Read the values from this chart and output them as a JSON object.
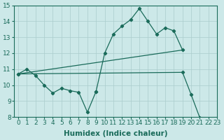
{
  "xlabel": "Humidex (Indice chaleur)",
  "color": "#1a6b5a",
  "bg_color": "#cce8e8",
  "grid_color": "#aacccc",
  "ylim": [
    8,
    15
  ],
  "xlim": [
    -0.5,
    23
  ],
  "yticks": [
    8,
    9,
    10,
    11,
    12,
    13,
    14,
    15
  ],
  "xticks": [
    0,
    1,
    2,
    3,
    4,
    5,
    6,
    7,
    8,
    9,
    10,
    11,
    12,
    13,
    14,
    15,
    16,
    17,
    18,
    19,
    20,
    21,
    22,
    23
  ],
  "tick_fontsize": 6.5,
  "xlabel_fontsize": 7.5,
  "series": {
    "zigzag": {
      "x": [
        0,
        1,
        2,
        3,
        4,
        5,
        6,
        7,
        8,
        9
      ],
      "y": [
        10.7,
        11.0,
        10.6,
        10.0,
        9.5,
        9.8,
        9.65,
        9.55,
        8.3,
        9.6
      ],
      "marker": true
    },
    "peak": {
      "x": [
        9,
        10,
        11,
        12,
        13,
        14,
        15,
        16,
        17,
        18,
        19
      ],
      "y": [
        9.6,
        12.0,
        13.2,
        13.7,
        14.1,
        14.8,
        14.0,
        13.2,
        13.6,
        13.4,
        12.2
      ],
      "marker": true
    },
    "upper_line": {
      "x": [
        0,
        19
      ],
      "y": [
        10.7,
        12.2
      ],
      "marker": false
    },
    "lower_line": {
      "x": [
        0,
        19,
        20,
        21,
        22
      ],
      "y": [
        10.7,
        10.8,
        9.4,
        7.95,
        7.7
      ],
      "marker": true
    }
  }
}
